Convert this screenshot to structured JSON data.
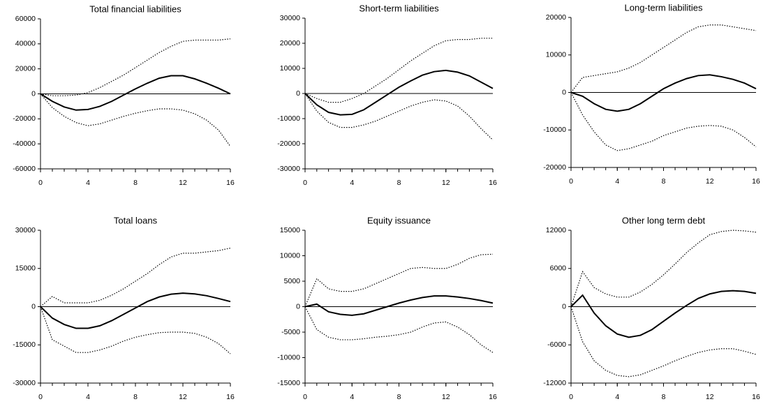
{
  "chart_data": [
    {
      "type": "line",
      "title": "Total financial liabilities",
      "x": [
        0,
        1,
        2,
        3,
        4,
        5,
        6,
        7,
        8,
        9,
        10,
        11,
        12,
        13,
        14,
        15,
        16
      ],
      "xlim": [
        0,
        16
      ],
      "xticks": [
        0,
        4,
        8,
        12,
        16
      ],
      "ylim": [
        -60000,
        60000
      ],
      "yticks": [
        -60000,
        -40000,
        -20000,
        0,
        20000,
        40000,
        60000
      ],
      "series": [
        {
          "color": "#000000",
          "style": "solid",
          "values": [
            0,
            -6000,
            -10500,
            -13000,
            -12500,
            -10000,
            -6000,
            -1000,
            4000,
            8500,
            12500,
            14500,
            14500,
            12000,
            8500,
            4500,
            0
          ]
        },
        {
          "color": "#000000",
          "style": "dotted",
          "values": [
            0,
            -1500,
            -1500,
            -1000,
            1000,
            5000,
            10000,
            15000,
            21000,
            27000,
            33000,
            38000,
            42000,
            43000,
            43000,
            43000,
            44000
          ]
        },
        {
          "color": "#000000",
          "style": "dotted",
          "values": [
            0,
            -11000,
            -18000,
            -23000,
            -25500,
            -24000,
            -21000,
            -18000,
            -15500,
            -13500,
            -12000,
            -12000,
            -13000,
            -16000,
            -21000,
            -29000,
            -42000
          ]
        }
      ]
    },
    {
      "type": "line",
      "title": "Short-term liabilities",
      "x": [
        0,
        1,
        2,
        3,
        4,
        5,
        6,
        7,
        8,
        9,
        10,
        11,
        12,
        13,
        14,
        15,
        16
      ],
      "xlim": [
        0,
        16
      ],
      "xticks": [
        0,
        4,
        8,
        12,
        16
      ],
      "ylim": [
        -30000,
        30000
      ],
      "yticks": [
        -30000,
        -20000,
        -10000,
        0,
        10000,
        20000,
        30000
      ],
      "series": [
        {
          "color": "#000000",
          "style": "solid",
          "values": [
            0,
            -4500,
            -7500,
            -8500,
            -8300,
            -6500,
            -3500,
            -500,
            2500,
            5000,
            7300,
            8700,
            9200,
            8500,
            7000,
            4500,
            2000
          ]
        },
        {
          "color": "#000000",
          "style": "dotted",
          "values": [
            0,
            -2000,
            -3500,
            -3500,
            -2000,
            0,
            3000,
            6000,
            9500,
            13000,
            16000,
            19000,
            21000,
            21500,
            21500,
            22000,
            22000
          ]
        },
        {
          "color": "#000000",
          "style": "dotted",
          "values": [
            0,
            -7000,
            -11500,
            -13500,
            -13500,
            -12500,
            -11000,
            -9000,
            -7000,
            -5000,
            -3500,
            -2500,
            -3000,
            -5000,
            -9000,
            -14000,
            -18500
          ]
        }
      ]
    },
    {
      "type": "line",
      "title": "Long-term liabilities",
      "x": [
        0,
        1,
        2,
        3,
        4,
        5,
        6,
        7,
        8,
        9,
        10,
        11,
        12,
        13,
        14,
        15,
        16
      ],
      "xlim": [
        0,
        16
      ],
      "xticks": [
        0,
        4,
        8,
        12,
        16
      ],
      "ylim": [
        -20000,
        20000
      ],
      "yticks": [
        -20000,
        -10000,
        0,
        10000,
        20000
      ],
      "series": [
        {
          "color": "#000000",
          "style": "solid",
          "values": [
            0,
            -1000,
            -3000,
            -4500,
            -5000,
            -4500,
            -3000,
            -1000,
            1000,
            2500,
            3700,
            4500,
            4700,
            4200,
            3500,
            2500,
            1000
          ]
        },
        {
          "color": "#000000",
          "style": "dotted",
          "values": [
            0,
            4000,
            4500,
            5000,
            5500,
            6500,
            8000,
            10000,
            12000,
            14000,
            16000,
            17500,
            18000,
            18000,
            17500,
            17000,
            16500
          ]
        },
        {
          "color": "#000000",
          "style": "dotted",
          "values": [
            0,
            -6000,
            -10500,
            -14000,
            -15500,
            -15000,
            -14000,
            -13000,
            -11500,
            -10500,
            -9500,
            -9000,
            -8800,
            -9000,
            -10000,
            -12000,
            -14500
          ]
        }
      ]
    },
    {
      "type": "line",
      "title": "Total loans",
      "x": [
        0,
        1,
        2,
        3,
        4,
        5,
        6,
        7,
        8,
        9,
        10,
        11,
        12,
        13,
        14,
        15,
        16
      ],
      "xlim": [
        0,
        16
      ],
      "xticks": [
        0,
        4,
        8,
        12,
        16
      ],
      "ylim": [
        -30000,
        30000
      ],
      "yticks": [
        -30000,
        -15000,
        0,
        15000,
        30000
      ],
      "series": [
        {
          "color": "#000000",
          "style": "solid",
          "values": [
            0,
            -4500,
            -7000,
            -8500,
            -8500,
            -7500,
            -5500,
            -3000,
            -500,
            2000,
            3800,
            4900,
            5300,
            5000,
            4300,
            3200,
            2000
          ]
        },
        {
          "color": "#000000",
          "style": "dotted",
          "values": [
            0,
            4000,
            1500,
            1500,
            1500,
            2500,
            4500,
            7000,
            10000,
            13000,
            16500,
            19500,
            21000,
            21000,
            21500,
            22000,
            23000
          ]
        },
        {
          "color": "#000000",
          "style": "dotted",
          "values": [
            0,
            -13000,
            -15500,
            -18000,
            -18000,
            -17000,
            -15500,
            -13500,
            -12000,
            -11000,
            -10200,
            -10000,
            -10000,
            -10500,
            -12000,
            -14500,
            -18500
          ]
        }
      ]
    },
    {
      "type": "line",
      "title": "Equity issuance",
      "x": [
        0,
        1,
        2,
        3,
        4,
        5,
        6,
        7,
        8,
        9,
        10,
        11,
        12,
        13,
        14,
        15,
        16
      ],
      "xlim": [
        0,
        16
      ],
      "xticks": [
        0,
        4,
        8,
        12,
        16
      ],
      "ylim": [
        -15000,
        15000
      ],
      "yticks": [
        -15000,
        -10000,
        -5000,
        0,
        5000,
        10000,
        15000
      ],
      "series": [
        {
          "color": "#000000",
          "style": "solid",
          "values": [
            0,
            500,
            -1000,
            -1500,
            -1700,
            -1400,
            -700,
            0,
            700,
            1300,
            1800,
            2100,
            2100,
            1900,
            1600,
            1200,
            700
          ]
        },
        {
          "color": "#000000",
          "style": "dotted",
          "values": [
            0,
            5500,
            3500,
            3000,
            3000,
            3500,
            4500,
            5500,
            6500,
            7500,
            7700,
            7500,
            7500,
            8300,
            9500,
            10200,
            10300
          ]
        },
        {
          "color": "#000000",
          "style": "dotted",
          "values": [
            0,
            -4500,
            -6000,
            -6500,
            -6500,
            -6300,
            -6000,
            -5800,
            -5500,
            -5000,
            -4000,
            -3200,
            -3000,
            -4000,
            -5500,
            -7500,
            -9000
          ]
        }
      ]
    },
    {
      "type": "line",
      "title": "Other long term debt",
      "x": [
        0,
        1,
        2,
        3,
        4,
        5,
        6,
        7,
        8,
        9,
        10,
        11,
        12,
        13,
        14,
        15,
        16
      ],
      "xlim": [
        0,
        16
      ],
      "xticks": [
        0,
        4,
        8,
        12,
        16
      ],
      "ylim": [
        -12000,
        12000
      ],
      "yticks": [
        -12000,
        -6000,
        0,
        6000,
        12000
      ],
      "series": [
        {
          "color": "#000000",
          "style": "solid",
          "values": [
            0,
            1800,
            -1000,
            -3000,
            -4300,
            -4800,
            -4500,
            -3600,
            -2300,
            -1000,
            200,
            1300,
            2000,
            2400,
            2500,
            2400,
            2100
          ]
        },
        {
          "color": "#000000",
          "style": "dotted",
          "values": [
            0,
            5500,
            3000,
            2000,
            1500,
            1500,
            2300,
            3500,
            5000,
            6700,
            8500,
            10000,
            11300,
            11800,
            12000,
            11900,
            11700
          ]
        },
        {
          "color": "#000000",
          "style": "dotted",
          "values": [
            0,
            -5500,
            -8500,
            -10000,
            -10800,
            -11000,
            -10700,
            -10000,
            -9300,
            -8500,
            -7800,
            -7200,
            -6800,
            -6600,
            -6600,
            -7000,
            -7500
          ]
        }
      ]
    }
  ]
}
